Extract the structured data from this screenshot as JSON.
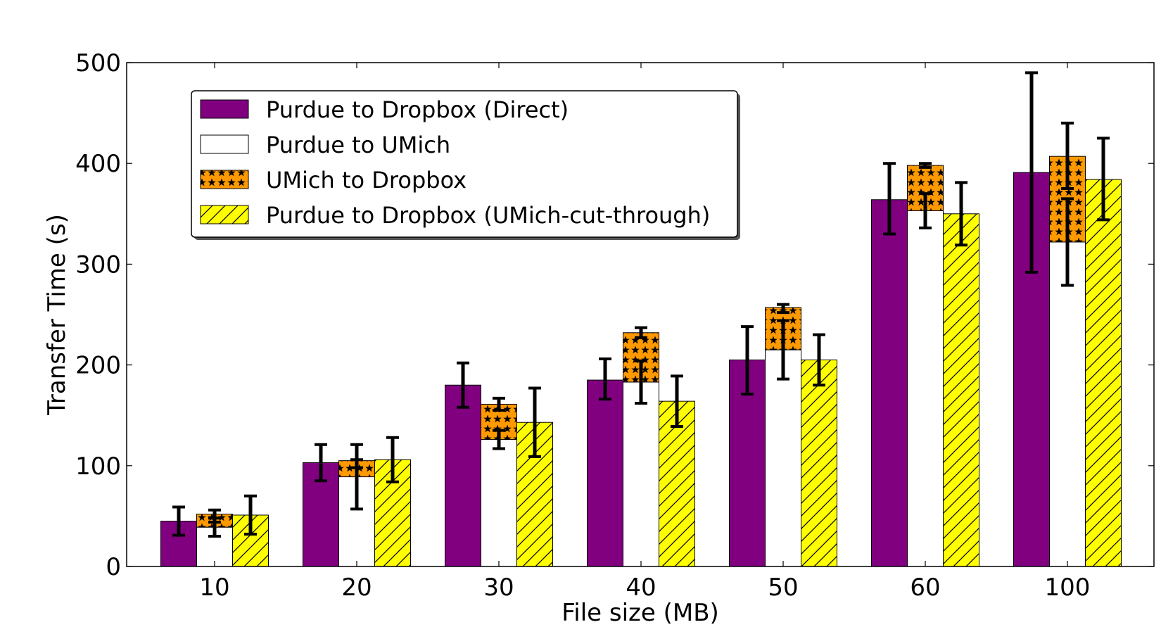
{
  "chart_data": {
    "type": "bar",
    "xlabel": "File size (MB)",
    "ylabel": "Transfer Time (s)",
    "ylim": [
      0,
      500
    ],
    "yticks": [
      0,
      100,
      200,
      300,
      400,
      500
    ],
    "grid": false,
    "legend_position": "top-left",
    "categories": [
      "10",
      "20",
      "30",
      "40",
      "50",
      "60",
      "100"
    ],
    "series": [
      {
        "name": "Purdue to Dropbox (Direct)",
        "color": "#800080",
        "pattern": "solid",
        "values": [
          45,
          103,
          180,
          185,
          205,
          364,
          391
        ],
        "err_low": [
          31,
          85,
          158,
          166,
          171,
          330,
          292
        ],
        "err_high": [
          59,
          121,
          202,
          206,
          238,
          400,
          490
        ]
      },
      {
        "name": "Purdue to UMich",
        "color": "#ffffff",
        "pattern": "solid",
        "values": [
          39,
          89,
          126,
          183,
          215,
          353,
          322
        ],
        "err_low": [
          30,
          57,
          117,
          162,
          186,
          336,
          279
        ],
        "err_high": [
          48,
          121,
          135,
          204,
          244,
          370,
          365
        ]
      },
      {
        "name": "UMich to Dropbox",
        "color": "#ff9900",
        "pattern": "stars",
        "stacked_on": "Purdue to UMich",
        "segment_values": [
          13,
          16,
          35,
          49,
          42,
          45,
          85
        ],
        "top_values": [
          52,
          105,
          161,
          232,
          257,
          398,
          407
        ],
        "err_low": [
          44,
          98,
          155,
          227,
          252,
          396,
          375
        ],
        "err_high": [
          56,
          106,
          167,
          237,
          260,
          400,
          440
        ]
      },
      {
        "name": "Purdue to Dropbox (UMich-cut-through)",
        "color": "#ffff00",
        "pattern": "hatch",
        "values": [
          51,
          106,
          143,
          164,
          205,
          350,
          384
        ],
        "err_low": [
          32,
          84,
          109,
          139,
          180,
          319,
          344
        ],
        "err_high": [
          70,
          128,
          177,
          189,
          230,
          381,
          425
        ]
      }
    ]
  }
}
